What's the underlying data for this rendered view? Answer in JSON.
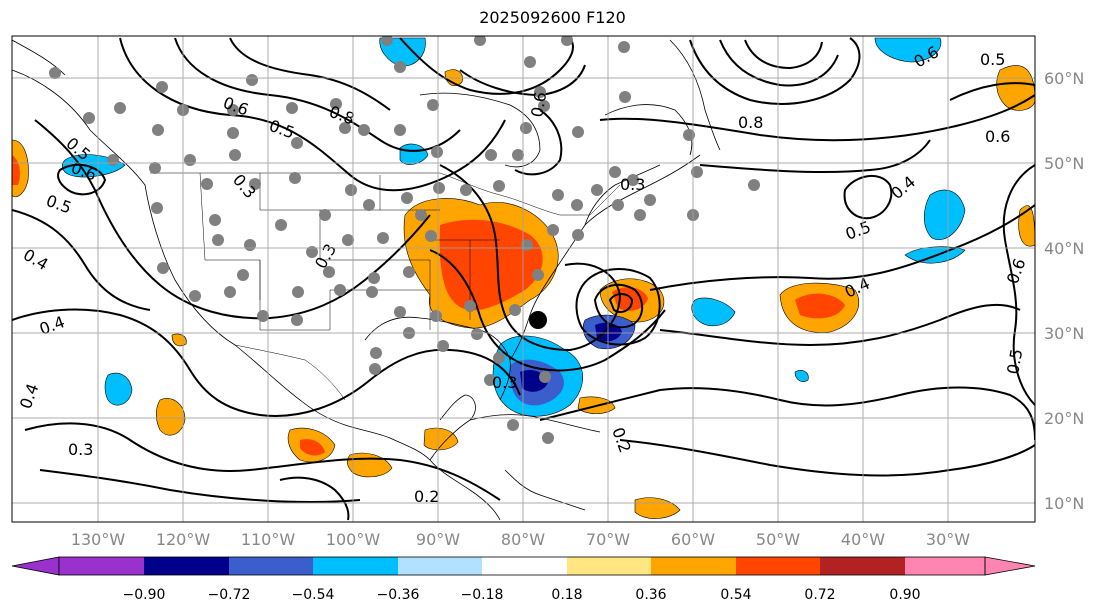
{
  "title": "2025092600 F120",
  "lon_labels": [
    "130°W",
    "120°W",
    "110°W",
    "100°W",
    "90°W",
    "80°W",
    "70°W",
    "60°W",
    "50°W",
    "40°W",
    "30°W"
  ],
  "lat_labels": [
    "60°N",
    "50°N",
    "40°N",
    "30°N",
    "20°N",
    "10°N"
  ],
  "colorbar": {
    "ticks": [
      "−0.90",
      "−0.72",
      "−0.54",
      "−0.36",
      "−0.18",
      "0.18",
      "0.36",
      "0.54",
      "0.72",
      "0.90"
    ],
    "colors": [
      "#9932cc",
      "#00008b",
      "#3a5fcd",
      "#00bfff",
      "#b0e2ff",
      "#ffffff",
      "#ffe680",
      "#ffa500",
      "#ff4500",
      "#b22222",
      "#ff85b0"
    ]
  },
  "contour_labels": [
    "0.6",
    "0.5",
    "0.8",
    "0.6",
    "0.3",
    "0.5",
    "0.4",
    "0.4",
    "0.4",
    "0.3",
    "0.3",
    "0.2",
    "0.5",
    "0.6",
    "0.4",
    "0.5",
    "0.4",
    "0.6",
    "0.5",
    "0.8",
    "0.6",
    "0.3",
    "0.6",
    "0.5",
    "0.3",
    "0.2"
  ],
  "colors": {
    "station": "#808080",
    "storm_center": "#000000"
  }
}
